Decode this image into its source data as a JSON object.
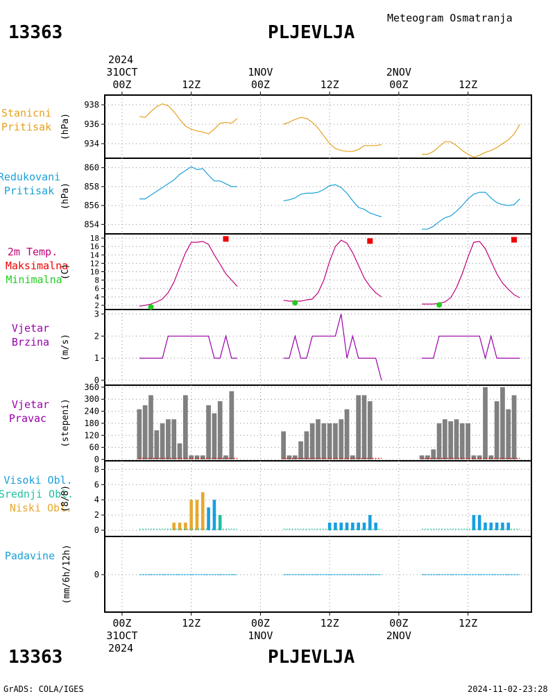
{
  "header": {
    "station_id": "13363",
    "station_name": "PLJEVLJA",
    "product": "Meteogram Osmatranja"
  },
  "footer": {
    "station_id": "13363",
    "station_name": "PLJEVLJA",
    "credit": "GrADS: COLA/IGES",
    "timestamp": "2024-11-02-23:28"
  },
  "time_axis": {
    "top_year": "2024",
    "bottom_year": "2024",
    "labels": [
      {
        "h": 0,
        "top": "00Z",
        "date": "31OCT"
      },
      {
        "h": 12,
        "top": "12Z",
        "date": ""
      },
      {
        "h": 24,
        "top": "00Z",
        "date": "1NOV"
      },
      {
        "h": 36,
        "top": "12Z",
        "date": ""
      },
      {
        "h": 48,
        "top": "00Z",
        "date": "2NOV"
      },
      {
        "h": 60,
        "top": "12Z",
        "date": ""
      }
    ]
  },
  "panels": {
    "pressure": {
      "label1": "Stanicni",
      "label2": "Pritisak",
      "unit": "(hPa)",
      "ticks": [
        "938",
        "936",
        "934"
      ],
      "color": "#e6a020"
    },
    "reduced": {
      "label1": "Redukovani",
      "label2": "Pritisak",
      "unit": "(hPa)",
      "ticks": [
        "860",
        "858",
        "856",
        "854"
      ],
      "color": "#1aa0d8"
    },
    "temp": {
      "label1": "2m Temp.",
      "label2": "Maksimalna",
      "label3": "Minimalna",
      "unit": "(C)",
      "ticks": [
        "18",
        "16",
        "14",
        "12",
        "10",
        "8",
        "6",
        "4",
        "2"
      ],
      "color": "#c0007a",
      "max_color": "#ee0000",
      "min_color": "#22cc22"
    },
    "windspeed": {
      "label1": "Vjetar",
      "label2": "Brzina",
      "unit": "(m/s)",
      "ticks": [
        "3",
        "2",
        "1",
        "0"
      ],
      "color": "#9900aa"
    },
    "winddir": {
      "label1": "Vjetar",
      "label2": "Pravac",
      "unit": "(stepeni)",
      "ticks": [
        "360",
        "300",
        "240",
        "180",
        "120",
        "60",
        "0"
      ],
      "color": "#9900aa",
      "bar_color": "#808080"
    },
    "clouds": {
      "label1": "Visoki Obl.",
      "label2": "Srednji Obl.",
      "label3": "Niski Obl.",
      "unit": "(8/8)",
      "ticks": [
        "8",
        "6",
        "4",
        "2",
        "0"
      ],
      "high_color": "#1a9ee0",
      "mid_color": "#20c0a0",
      "low_color": "#e6a830"
    },
    "precip": {
      "label1": "Padavine",
      "unit": "(mm/6h/12h)",
      "ticks": [
        "0"
      ],
      "color": "#1aa0d8"
    }
  },
  "chart_data": {
    "type": "line",
    "x_unit": "hours since 2024-10-31 00Z",
    "xlim": [
      -3,
      71
    ],
    "series": [
      {
        "name": "Stanicni Pritisak",
        "ylim": [
          932.5,
          939
        ],
        "x": [
          3,
          4,
          5,
          6,
          7,
          8,
          9,
          10,
          11,
          12,
          13,
          14,
          15,
          16,
          17,
          18,
          19,
          20
        ],
        "values": [
          936.8,
          936.7,
          937.3,
          937.8,
          938.1,
          937.9,
          937.3,
          936.5,
          935.8,
          935.5,
          935.3,
          935.2,
          935.0,
          935.5,
          936.1,
          936.2,
          936.1,
          936.6
        ]
      },
      {
        "name": "Stanicni Pritisak",
        "ylim": [
          932.5,
          939
        ],
        "x": [
          28,
          29,
          30,
          31,
          32,
          33,
          34,
          35,
          36,
          37,
          38,
          39,
          40,
          41,
          42,
          43,
          44,
          45
        ],
        "values": [
          936.0,
          936.2,
          936.5,
          936.7,
          936.6,
          936.2,
          935.6,
          934.8,
          934.0,
          933.5,
          933.3,
          933.2,
          933.2,
          933.4,
          933.8,
          933.8,
          933.8,
          933.9
        ]
      },
      {
        "name": "Stanicni Pritisak",
        "ylim": [
          932.5,
          939
        ],
        "x": [
          52,
          53,
          54,
          55,
          56,
          57,
          58,
          59,
          60,
          61,
          62,
          63,
          64,
          65,
          66,
          67,
          68,
          69
        ],
        "values": [
          932.9,
          932.9,
          933.2,
          933.7,
          934.2,
          934.2,
          933.8,
          933.3,
          932.9,
          932.6,
          932.8,
          933.1,
          933.3,
          933.6,
          934.0,
          934.4,
          935.0,
          936.0
        ]
      },
      {
        "name": "Redukovani Pritisak",
        "ylim": [
          853,
          861
        ],
        "x": [
          3,
          4,
          5,
          6,
          7,
          8,
          9,
          10,
          11,
          12,
          13,
          14,
          15,
          16,
          17,
          18,
          19,
          20
        ],
        "values": [
          856.7,
          856.7,
          857.1,
          857.5,
          857.9,
          858.3,
          858.7,
          859.3,
          859.7,
          860.1,
          859.8,
          859.9,
          859.2,
          858.6,
          858.6,
          858.3,
          858.0,
          858.0
        ]
      },
      {
        "name": "Redukovani Pritisak",
        "ylim": [
          853,
          861
        ],
        "x": [
          28,
          29,
          30,
          31,
          32,
          33,
          34,
          35,
          36,
          37,
          38,
          39,
          40,
          41,
          42,
          43,
          44,
          45
        ],
        "values": [
          856.5,
          856.6,
          856.8,
          857.2,
          857.3,
          857.3,
          857.4,
          857.7,
          858.1,
          858.2,
          857.9,
          857.3,
          856.5,
          855.8,
          855.6,
          855.2,
          855.0,
          854.8
        ]
      },
      {
        "name": "Redukovani Pritisak",
        "ylim": [
          853,
          861
        ],
        "x": [
          52,
          53,
          54,
          55,
          56,
          57,
          58,
          59,
          60,
          61,
          62,
          63,
          64,
          65,
          66,
          67,
          68,
          69
        ],
        "values": [
          853.5,
          853.5,
          853.8,
          854.3,
          854.7,
          854.9,
          855.4,
          856.0,
          856.7,
          857.2,
          857.4,
          857.4,
          856.8,
          856.3,
          856.1,
          856.0,
          856.1,
          856.7
        ]
      },
      {
        "name": "2m Temp.",
        "ylim": [
          1,
          19
        ],
        "x": [
          3,
          4,
          5,
          6,
          7,
          8,
          9,
          10,
          11,
          12,
          13,
          14,
          15,
          16,
          17,
          18,
          19,
          20
        ],
        "values": [
          1.8,
          2.0,
          2.3,
          2.8,
          3.5,
          5.0,
          7.5,
          11.0,
          14.5,
          17.0,
          17.0,
          17.2,
          16.5,
          14.0,
          11.8,
          9.5,
          8.0,
          6.5
        ]
      },
      {
        "name": "2m Temp.",
        "ylim": [
          1,
          19
        ],
        "x": [
          28,
          29,
          30,
          31,
          32,
          33,
          34,
          35,
          36,
          37,
          38,
          39,
          40,
          41,
          42,
          43,
          44,
          45
        ],
        "values": [
          3.2,
          3.0,
          3.0,
          3.0,
          3.3,
          3.5,
          5.0,
          8.0,
          12.5,
          16.0,
          17.5,
          16.8,
          14.5,
          11.5,
          8.5,
          6.5,
          5.0,
          4.0
        ]
      },
      {
        "name": "2m Temp.",
        "ylim": [
          1,
          19
        ],
        "x": [
          52,
          53,
          54,
          55,
          56,
          57,
          58,
          59,
          60,
          61,
          62,
          63,
          64,
          65,
          66,
          67,
          68,
          69
        ],
        "values": [
          2.3,
          2.3,
          2.3,
          2.5,
          2.8,
          3.8,
          6.2,
          9.5,
          13.5,
          17.0,
          17.2,
          15.5,
          12.5,
          9.5,
          7.3,
          5.8,
          4.5,
          3.8
        ]
      },
      {
        "name": "Maksimalna",
        "type": "scatter",
        "ylim": [
          1,
          19
        ],
        "x": [
          18,
          43,
          68
        ],
        "values": [
          17.8,
          17.3,
          17.6
        ]
      },
      {
        "name": "Minimalna",
        "type": "scatter",
        "ylim": [
          1,
          19
        ],
        "x": [
          5,
          30,
          55
        ],
        "values": [
          1.6,
          2.6,
          2.1
        ]
      },
      {
        "name": "Vjetar Brzina",
        "ylim": [
          0,
          3.2
        ],
        "x": [
          3,
          4,
          5,
          6,
          7,
          8,
          9,
          10,
          11,
          12,
          13,
          14,
          15,
          16,
          17,
          18,
          19,
          20
        ],
        "values": [
          1,
          1,
          1,
          1,
          1,
          2,
          2,
          2,
          2,
          2,
          2,
          2,
          2,
          1,
          1,
          2,
          1,
          1
        ]
      },
      {
        "name": "Vjetar Brzina",
        "ylim": [
          0,
          3.2
        ],
        "x": [
          28,
          29,
          30,
          31,
          32,
          33,
          34,
          35,
          36,
          37,
          38,
          39,
          40,
          41,
          42,
          43,
          44,
          45
        ],
        "values": [
          1,
          1,
          2,
          1,
          1,
          2,
          2,
          2,
          2,
          2,
          3,
          1,
          2,
          1,
          1,
          1,
          1,
          0
        ]
      },
      {
        "name": "Vjetar Brzina",
        "ylim": [
          0,
          3.2
        ],
        "x": [
          52,
          53,
          54,
          55,
          56,
          57,
          58,
          59,
          60,
          61,
          62,
          63,
          64,
          65,
          66,
          67,
          68,
          69
        ],
        "values": [
          1,
          1,
          1,
          2,
          2,
          2,
          2,
          2,
          2,
          2,
          2,
          1,
          2,
          1,
          1,
          1,
          1,
          1
        ]
      }
    ],
    "wind_direction": {
      "type": "bar",
      "ylim": [
        0,
        370
      ],
      "x": [
        3,
        4,
        5,
        6,
        7,
        8,
        9,
        10,
        11,
        12,
        13,
        14,
        15,
        16,
        17,
        18,
        19,
        20,
        28,
        29,
        30,
        31,
        32,
        33,
        34,
        35,
        36,
        37,
        38,
        39,
        40,
        41,
        42,
        43,
        44,
        45,
        52,
        53,
        54,
        55,
        56,
        57,
        58,
        59,
        60,
        61,
        62,
        63,
        64,
        65,
        66,
        67,
        68,
        69
      ],
      "values": [
        250,
        270,
        320,
        145,
        180,
        200,
        200,
        80,
        320,
        20,
        20,
        20,
        270,
        230,
        290,
        20,
        340,
        0,
        140,
        20,
        20,
        90,
        140,
        180,
        200,
        180,
        180,
        180,
        200,
        250,
        20,
        320,
        320,
        290,
        0,
        0,
        20,
        20,
        50,
        180,
        200,
        190,
        200,
        180,
        180,
        20,
        20,
        360,
        20,
        290,
        360,
        250,
        320,
        0
      ]
    },
    "clouds": {
      "type": "bar",
      "ylim": [
        0,
        8.4
      ],
      "high": {
        "x": [
          15,
          16,
          36,
          37,
          38,
          39,
          40,
          41,
          42,
          43,
          44,
          61,
          62,
          63,
          64,
          65,
          66,
          67
        ],
        "values": [
          3,
          4,
          1,
          1,
          1,
          1,
          1,
          1,
          1,
          2,
          1,
          2,
          2,
          1,
          1,
          1,
          1,
          1
        ]
      },
      "mid": {
        "x": [
          17
        ],
        "values": [
          2
        ]
      },
      "low": {
        "x": [
          9,
          10,
          11,
          12,
          13,
          14,
          15
        ],
        "values": [
          1,
          1,
          1,
          4,
          4,
          5,
          1
        ]
      }
    },
    "precip": {
      "type": "bar",
      "ylim": [
        -1,
        1
      ],
      "x": [
        3,
        20,
        28,
        45,
        52,
        69
      ],
      "values": [
        0,
        0,
        0,
        0,
        0,
        0
      ]
    }
  }
}
